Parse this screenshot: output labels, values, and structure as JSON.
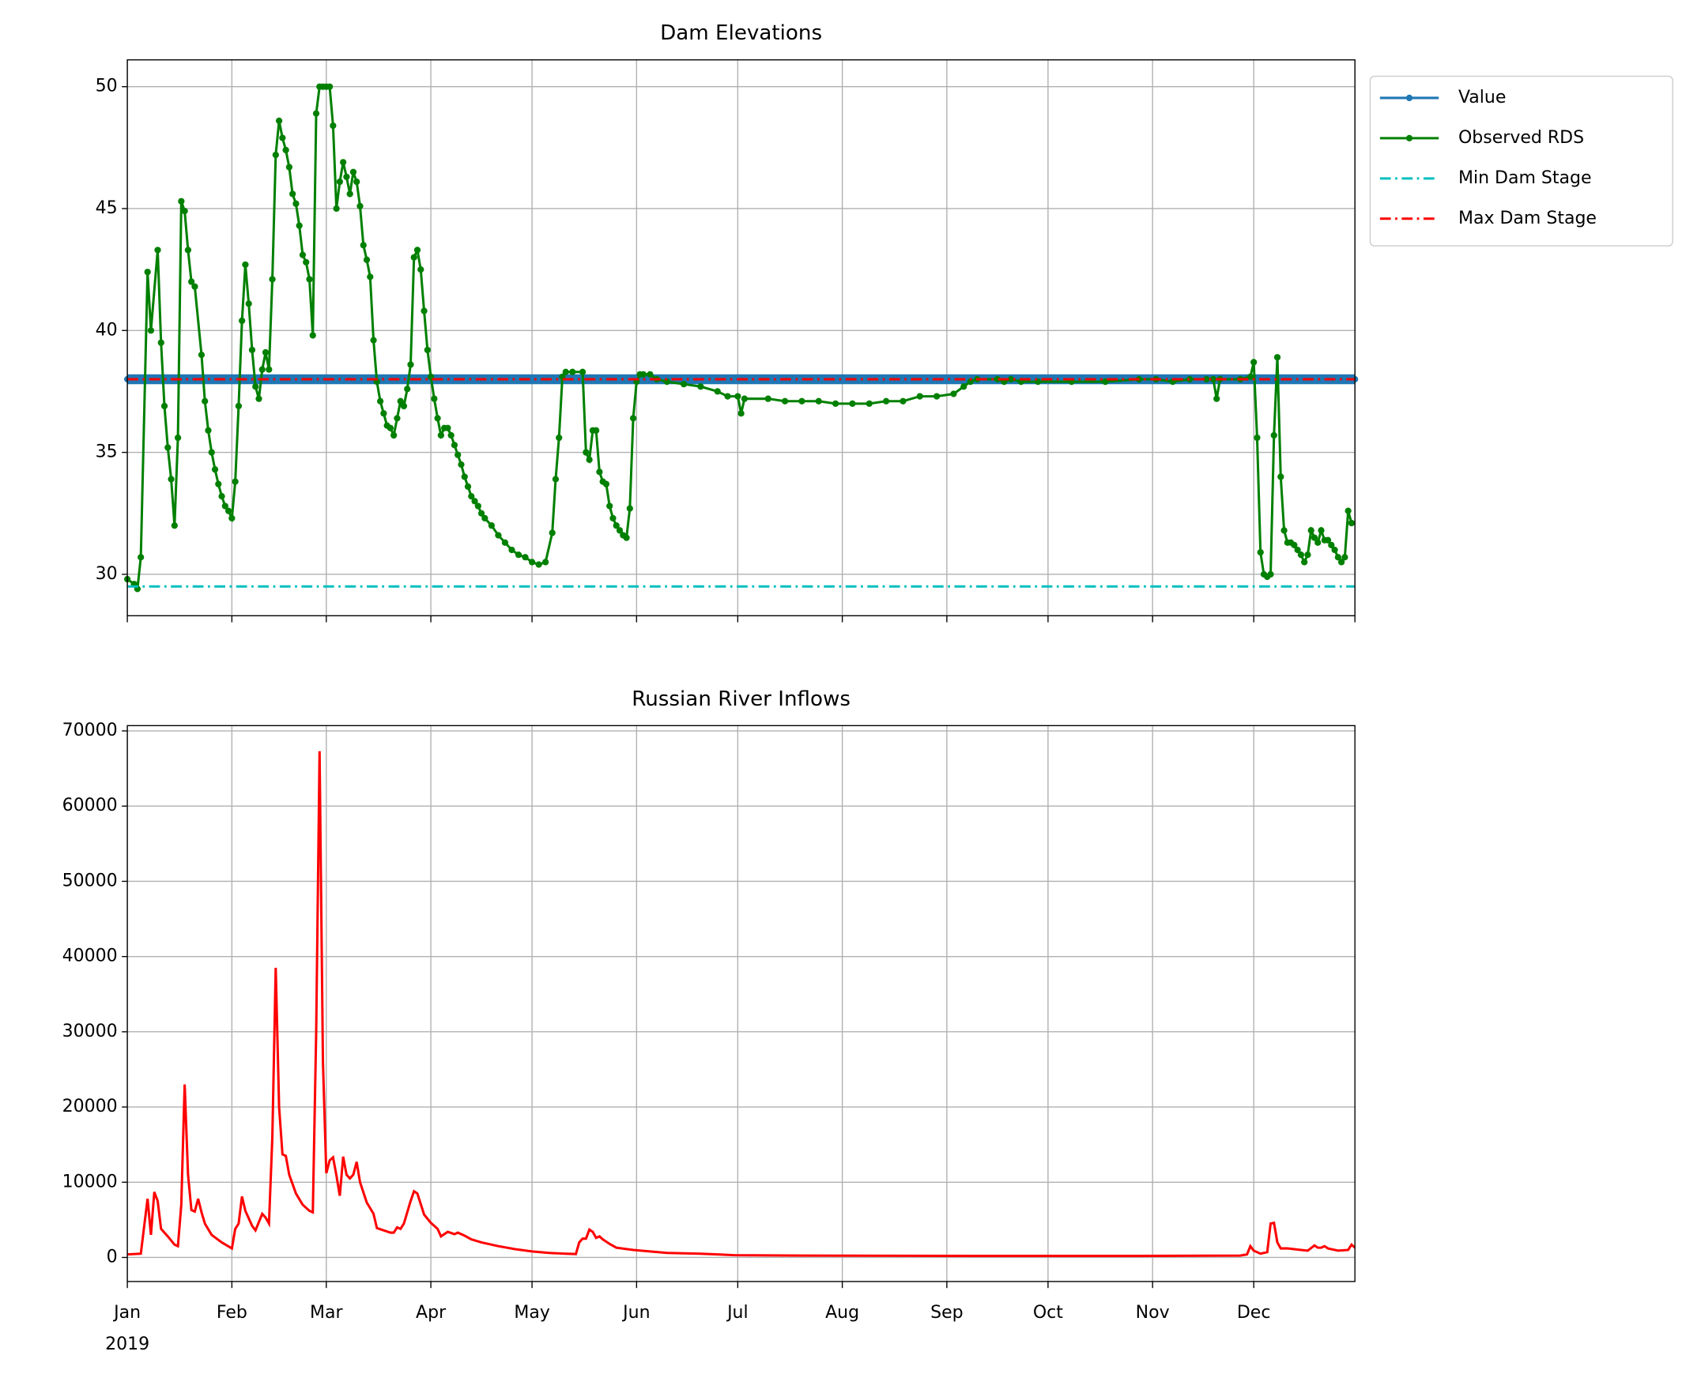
{
  "chart_data": [
    {
      "type": "line",
      "title": "Dam Elevations",
      "xlim": [
        0,
        364
      ],
      "xticks": [
        0,
        31,
        59,
        90,
        120,
        151,
        181,
        212,
        243,
        273,
        304,
        334,
        364
      ],
      "ylim": [
        28.3,
        51.1
      ],
      "yticks": [
        30,
        35,
        40,
        45,
        50
      ],
      "grid": true,
      "legend": "outside upper right",
      "series": [
        {
          "name": "Value",
          "color": "#1f77b4",
          "marker": true,
          "linestyle": "solid",
          "x": [
            0,
            364
          ],
          "values": [
            38,
            38
          ]
        },
        {
          "name": "Observed RDS",
          "color": "#008000",
          "marker": true,
          "linestyle": "solid",
          "x": [
            0,
            2,
            3,
            4,
            6,
            7,
            9,
            10,
            11,
            12,
            13,
            14,
            15,
            16,
            17,
            18,
            19,
            20,
            22,
            23,
            24,
            25,
            26,
            27,
            28,
            29,
            30,
            31,
            32,
            33,
            34,
            35,
            36,
            37,
            38,
            39,
            40,
            41,
            42,
            43,
            44,
            45,
            46,
            47,
            48,
            49,
            50,
            51,
            52,
            53,
            54,
            55,
            56,
            57,
            58,
            59,
            60,
            61,
            62,
            63,
            64,
            65,
            66,
            67,
            68,
            69,
            70,
            71,
            72,
            73,
            74,
            75,
            76,
            77,
            78,
            79,
            80,
            81,
            82,
            83,
            84,
            85,
            86,
            87,
            88,
            89,
            90,
            91,
            92,
            93,
            94,
            95,
            96,
            97,
            98,
            99,
            100,
            101,
            102,
            103,
            104,
            105,
            106,
            108,
            110,
            112,
            114,
            116,
            118,
            120,
            122,
            124,
            126,
            127,
            128,
            129,
            130,
            132,
            135,
            136,
            137,
            138,
            139,
            140,
            141,
            142,
            143,
            144,
            145,
            146,
            147,
            148,
            149,
            150,
            151,
            152,
            153,
            155,
            157,
            160,
            165,
            170,
            175,
            178,
            181,
            182,
            183,
            190,
            195,
            200,
            205,
            210,
            215,
            220,
            225,
            230,
            235,
            240,
            245,
            248,
            250,
            252,
            258,
            260,
            262,
            265,
            270,
            280,
            290,
            300,
            305,
            310,
            315,
            320,
            322,
            323,
            324,
            330,
            333,
            334,
            335,
            336,
            337,
            338,
            339,
            340,
            341,
            342,
            343,
            344,
            345,
            346,
            347,
            348,
            349,
            350,
            351,
            352,
            353,
            354,
            355,
            356,
            357,
            358,
            359,
            360,
            361,
            362,
            363
          ],
          "values": [
            29.8,
            29.6,
            29.4,
            30.7,
            42.4,
            40.0,
            43.3,
            39.5,
            36.9,
            35.2,
            33.9,
            32.0,
            35.6,
            45.3,
            44.9,
            43.3,
            42.0,
            41.8,
            39.0,
            37.1,
            35.9,
            35.0,
            34.3,
            33.7,
            33.2,
            32.8,
            32.6,
            32.3,
            33.8,
            36.9,
            40.4,
            42.7,
            41.1,
            39.2,
            37.7,
            37.2,
            38.4,
            39.1,
            38.4,
            42.1,
            47.2,
            48.6,
            47.9,
            47.4,
            46.7,
            45.6,
            45.2,
            44.3,
            43.1,
            42.8,
            42.1,
            39.8,
            48.9,
            50,
            50,
            50,
            50,
            48.4,
            45.0,
            46.1,
            46.9,
            46.3,
            45.6,
            46.5,
            46.1,
            45.1,
            43.5,
            42.9,
            42.2,
            39.6,
            37.9,
            37.1,
            36.6,
            36.1,
            36.0,
            35.7,
            36.4,
            37.1,
            36.9,
            37.6,
            38.6,
            43.0,
            43.3,
            42.5,
            40.8,
            39.2,
            38.1,
            37.2,
            36.4,
            35.7,
            36.0,
            36.0,
            35.7,
            35.3,
            34.9,
            34.5,
            34.0,
            33.6,
            33.2,
            33.0,
            32.8,
            32.5,
            32.3,
            32.0,
            31.6,
            31.3,
            31.0,
            30.8,
            30.7,
            30.5,
            30.4,
            30.5,
            31.7,
            33.9,
            35.6,
            38.1,
            38.3,
            38.3,
            38.3,
            35.0,
            34.7,
            35.9,
            35.9,
            34.2,
            33.8,
            33.7,
            32.8,
            32.3,
            32.0,
            31.8,
            31.6,
            31.5,
            32.7,
            36.4,
            37.9,
            38.2,
            38.2,
            38.2,
            38.0,
            37.9,
            37.8,
            37.7,
            37.5,
            37.3,
            37.3,
            36.6,
            37.2,
            37.2,
            37.1,
            37.1,
            37.1,
            37.0,
            37.0,
            37.0,
            37.1,
            37.1,
            37.3,
            37.3,
            37.4,
            37.7,
            37.9,
            38.0,
            38.0,
            37.9,
            38.0,
            37.9,
            37.9,
            37.9,
            37.9,
            38.0,
            38.0,
            37.9,
            38.0,
            38.0,
            38.0,
            37.2,
            38.0,
            38.0,
            38.1,
            38.7,
            35.6,
            30.9,
            30.0,
            29.9,
            30.0,
            35.7,
            38.9,
            34.0,
            31.8,
            31.3,
            31.3,
            31.2,
            31.0,
            30.8,
            30.5,
            30.8,
            31.8,
            31.5,
            31.3,
            31.8,
            31.4,
            31.4,
            31.2,
            31.0,
            30.7,
            30.5,
            30.7,
            32.6,
            32.1
          ]
        },
        {
          "name": "Min Dam Stage",
          "color": "#00bfbf",
          "marker": false,
          "linestyle": "dashdot",
          "x": [
            0,
            364
          ],
          "values": [
            29.5,
            29.5
          ]
        },
        {
          "name": "Max Dam Stage",
          "color": "#ff0000",
          "marker": false,
          "linestyle": "dashdot",
          "x": [
            0,
            364
          ],
          "values": [
            38,
            38
          ]
        }
      ]
    },
    {
      "type": "line",
      "title": "Russian River Inflows",
      "xlim": [
        0,
        364
      ],
      "xticks": [
        {
          "value": 0,
          "label": "Jan"
        },
        {
          "value": 31,
          "label": "Feb"
        },
        {
          "value": 59,
          "label": "Mar"
        },
        {
          "value": 90,
          "label": "Apr"
        },
        {
          "value": 120,
          "label": "May"
        },
        {
          "value": 151,
          "label": "Jun"
        },
        {
          "value": 181,
          "label": "Jul"
        },
        {
          "value": 212,
          "label": "Aug"
        },
        {
          "value": 243,
          "label": "Sep"
        },
        {
          "value": 273,
          "label": "Oct"
        },
        {
          "value": 304,
          "label": "Nov"
        },
        {
          "value": 334,
          "label": "Dec"
        }
      ],
      "xticks_offset": "2019",
      "ylim": [
        -3200,
        70700
      ],
      "yticks": [
        0,
        10000,
        20000,
        30000,
        40000,
        50000,
        60000,
        70000
      ],
      "grid": true,
      "series": [
        {
          "color": "#ff0000",
          "marker": false,
          "linestyle": "solid",
          "x": [
            0,
            4,
            6,
            7,
            8,
            9,
            10,
            12,
            14,
            15,
            16,
            17,
            18,
            19,
            20,
            21,
            22,
            23,
            25,
            28,
            31,
            32,
            33,
            34,
            35,
            37,
            38,
            40,
            41,
            42,
            43,
            44,
            45,
            46,
            47,
            48,
            50,
            52,
            54,
            55,
            56,
            57,
            58,
            59,
            60,
            61,
            62,
            63,
            64,
            65,
            66,
            67,
            68,
            69,
            71,
            73,
            74,
            76,
            78,
            79,
            80,
            81,
            82,
            84,
            85,
            86,
            87,
            88,
            90,
            92,
            93,
            95,
            97,
            98,
            100,
            102,
            105,
            110,
            115,
            120,
            125,
            130,
            133,
            134,
            135,
            136,
            137,
            138,
            139,
            140,
            141,
            143,
            145,
            150,
            155,
            160,
            170,
            175,
            180,
            200,
            250,
            300,
            330,
            332,
            333,
            334,
            336,
            338,
            339,
            340,
            341,
            342,
            344,
            348,
            350,
            352,
            353,
            354,
            355,
            356,
            359,
            362,
            363,
            364
          ],
          "values": [
            400,
            500,
            7800,
            3000,
            8700,
            7500,
            3800,
            2800,
            1700,
            1500,
            7000,
            23000,
            11000,
            6300,
            6100,
            7800,
            6000,
            4500,
            3000,
            2000,
            1200,
            3800,
            4500,
            8100,
            6200,
            4200,
            3600,
            5800,
            5300,
            4500,
            16000,
            38500,
            20000,
            13700,
            13500,
            11000,
            8500,
            7000,
            6200,
            6000,
            30000,
            67300,
            26000,
            11200,
            12900,
            13300,
            10900,
            8200,
            13400,
            11000,
            10500,
            11000,
            12700,
            10000,
            7300,
            5800,
            3900,
            3600,
            3300,
            3300,
            4000,
            3800,
            4500,
            7500,
            8800,
            8500,
            7100,
            5700,
            4600,
            3800,
            2800,
            3400,
            3100,
            3300,
            2900,
            2400,
            2000,
            1500,
            1100,
            800,
            600,
            500,
            450,
            2000,
            2500,
            2500,
            3700,
            3400,
            2600,
            2800,
            2400,
            1800,
            1300,
            1000,
            800,
            600,
            500,
            400,
            300,
            250,
            200,
            200,
            250,
            400,
            1500,
            900,
            500,
            700,
            4500,
            4600,
            2000,
            1200,
            1200,
            1000,
            900,
            1600,
            1300,
            1300,
            1500,
            1200,
            900,
            1000,
            1700,
            1300
          ]
        }
      ]
    }
  ]
}
